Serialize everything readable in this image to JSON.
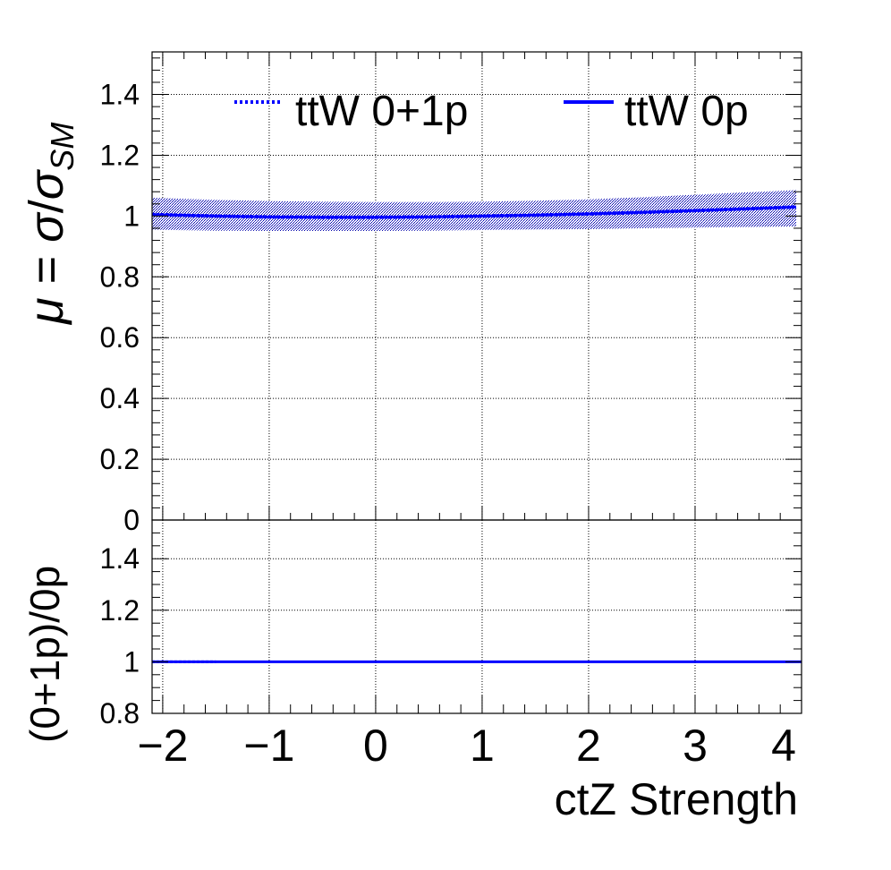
{
  "chart_data": [
    {
      "type": "line",
      "panel": "main",
      "ylabel": "μ = σ/σ_SM",
      "ylim": [
        0,
        1.54
      ],
      "xlim": [
        -2.1,
        4.0
      ],
      "yticks": [
        {
          "value": 0,
          "label": "0"
        },
        {
          "value": 0.2,
          "label": "0.2"
        },
        {
          "value": 0.4,
          "label": "0.4"
        },
        {
          "value": 0.6,
          "label": "0.6"
        },
        {
          "value": 0.8,
          "label": "0.8"
        },
        {
          "value": 1.0,
          "label": "1"
        },
        {
          "value": 1.2,
          "label": "1.2"
        },
        {
          "value": 1.4,
          "label": "1.4"
        }
      ],
      "grid": true,
      "legend_position": "top",
      "series": [
        {
          "name": "ttW 0+1p",
          "style": "dotted",
          "color": "#0000ff",
          "x": [
            -2.1,
            -1.5,
            -1.0,
            -0.5,
            0.0,
            0.5,
            1.0,
            1.5,
            2.0,
            2.5,
            3.0,
            3.5,
            3.95
          ],
          "values": [
            1.005,
            1.0,
            0.997,
            0.996,
            0.996,
            0.997,
            1.0,
            1.003,
            1.007,
            1.012,
            1.018,
            1.024,
            1.03
          ]
        },
        {
          "name": "ttW 0p",
          "style": "solid",
          "color": "#0000ff",
          "x": [
            -2.1,
            -1.5,
            -1.0,
            -0.5,
            0.0,
            0.5,
            1.0,
            1.5,
            2.0,
            2.5,
            3.0,
            3.5,
            3.95
          ],
          "values": [
            1.005,
            1.0,
            0.997,
            0.996,
            0.996,
            0.997,
            1.0,
            1.003,
            1.007,
            1.012,
            1.018,
            1.024,
            1.03
          ],
          "band_low": [
            0.955,
            0.952,
            0.951,
            0.951,
            0.951,
            0.952,
            0.954,
            0.956,
            0.957,
            0.96,
            0.962,
            0.964,
            0.966
          ],
          "band_high": [
            1.06,
            1.053,
            1.049,
            1.047,
            1.046,
            1.046,
            1.047,
            1.05,
            1.055,
            1.062,
            1.07,
            1.078,
            1.085
          ]
        }
      ]
    },
    {
      "type": "line",
      "panel": "ratio",
      "xlabel": "ctZ Strength",
      "ylabel": "(0+1p)/0p",
      "ylim": [
        0.8,
        1.55
      ],
      "xlim": [
        -2.1,
        4.0
      ],
      "xticks": [
        {
          "value": -2,
          "label": "−2"
        },
        {
          "value": -1,
          "label": "−1"
        },
        {
          "value": 0,
          "label": "0"
        },
        {
          "value": 1,
          "label": "1"
        },
        {
          "value": 2,
          "label": "2"
        },
        {
          "value": 3,
          "label": "3"
        },
        {
          "value": 4,
          "label": "4"
        }
      ],
      "yticks": [
        {
          "value": 0.8,
          "label": "0.8"
        },
        {
          "value": 1.0,
          "label": "1"
        },
        {
          "value": 1.2,
          "label": "1.2"
        },
        {
          "value": 1.4,
          "label": "1.4"
        }
      ],
      "grid": true,
      "series": [
        {
          "style": "solid",
          "color": "#0000ff",
          "x": [
            -2.1,
            4.0
          ],
          "values": [
            1.0,
            1.0
          ]
        }
      ]
    }
  ]
}
